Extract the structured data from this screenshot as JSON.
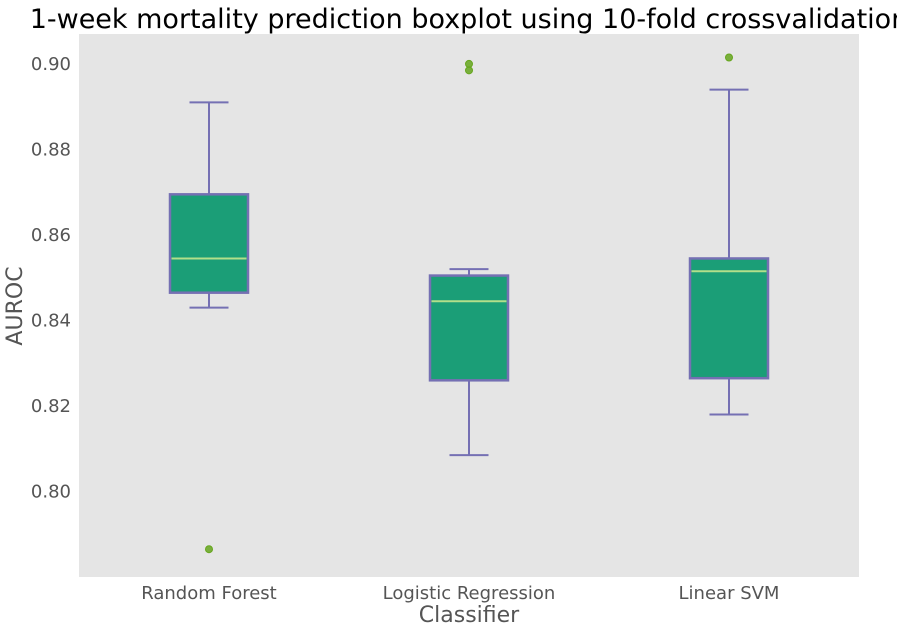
{
  "chart_data": {
    "type": "boxplot",
    "title": "1-week mortality prediction boxplot using 10-fold crossvalidation",
    "xlabel": "Classifier",
    "ylabel": "AUROC",
    "ylim": [
      0.78,
      0.907
    ],
    "yticks": [
      "0.80",
      "0.82",
      "0.84",
      "0.86",
      "0.88",
      "0.90"
    ],
    "grid": false,
    "categories": [
      "Random Forest",
      "Logistic Regression",
      "Linear SVM"
    ],
    "boxes": [
      {
        "category": "Random Forest",
        "whisker_low": 0.843,
        "q1": 0.8465,
        "median": 0.8545,
        "q3": 0.8695,
        "whisker_high": 0.891,
        "outliers": [
          0.7865
        ]
      },
      {
        "category": "Logistic Regression",
        "whisker_low": 0.8085,
        "q1": 0.826,
        "median": 0.8445,
        "q3": 0.8505,
        "whisker_high": 0.852,
        "outliers": [
          0.8985,
          0.9
        ]
      },
      {
        "category": "Linear SVM",
        "whisker_low": 0.818,
        "q1": 0.8265,
        "median": 0.8515,
        "q3": 0.8545,
        "whisker_high": 0.894,
        "outliers": [
          0.9015
        ]
      }
    ],
    "colors": {
      "plot_background": "#e5e5e5",
      "box_fill": "#1b9e77",
      "box_edge": "#7570b3",
      "median": "#b2df8a",
      "outlier": "#66a61e"
    }
  }
}
